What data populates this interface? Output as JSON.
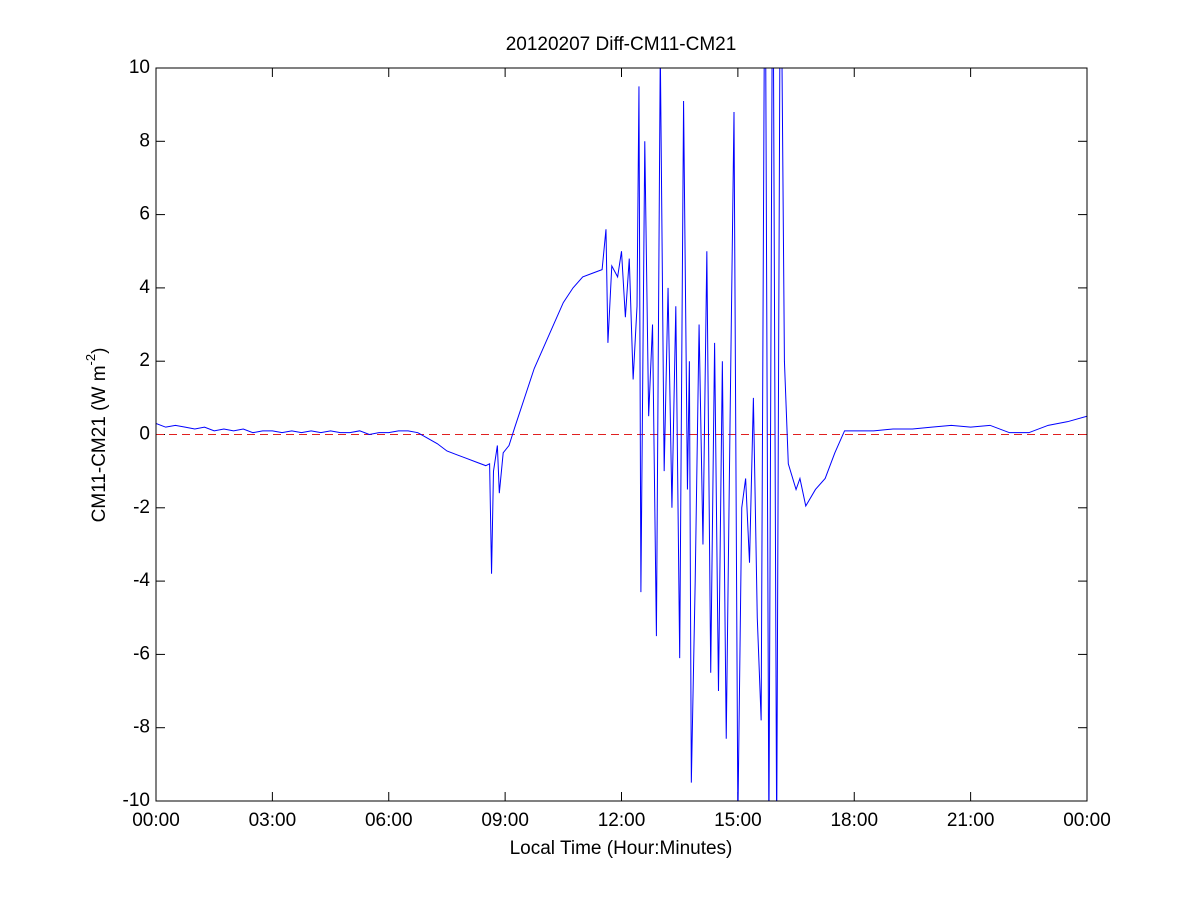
{
  "chart_data": {
    "type": "line",
    "title": "20120207 Diff-CM11-CM21",
    "x_label": "Local Time (Hour:Minutes)",
    "y_label": "CM11-CM21 (W m",
    "y_label_sup": "-2",
    "y_label_end": ")",
    "x": [
      0,
      0.25,
      0.5,
      0.75,
      1,
      1.25,
      1.5,
      1.75,
      2,
      2.25,
      2.5,
      2.75,
      3,
      3.25,
      3.5,
      3.75,
      4,
      4.25,
      4.5,
      4.75,
      5,
      5.25,
      5.5,
      5.75,
      6,
      6.25,
      6.5,
      6.75,
      7,
      7.25,
      7.5,
      7.75,
      8,
      8.25,
      8.5,
      8.6,
      8.65,
      8.7,
      8.8,
      8.85,
      8.95,
      9.1,
      9.25,
      9.5,
      9.75,
      10,
      10.25,
      10.5,
      10.75,
      11,
      11.25,
      11.5,
      11.6,
      11.65,
      11.75,
      11.9,
      12,
      12.1,
      12.2,
      12.3,
      12.4,
      12.45,
      12.5,
      12.6,
      12.7,
      12.8,
      12.9,
      13,
      13.1,
      13.2,
      13.3,
      13.4,
      13.5,
      13.6,
      13.7,
      13.75,
      13.8,
      13.9,
      14,
      14.1,
      14.2,
      14.3,
      14.4,
      14.5,
      14.6,
      14.7,
      14.8,
      14.9,
      15,
      15.1,
      15.2,
      15.3,
      15.4,
      15.5,
      15.6,
      15.7,
      15.8,
      15.9,
      16,
      16.1,
      16.2,
      16.3,
      16.5,
      16.6,
      16.75,
      17,
      17.25,
      17.5,
      17.75,
      18,
      18.5,
      19,
      19.5,
      20,
      20.5,
      21,
      21.5,
      22,
      22.5,
      23,
      23.5,
      24
    ],
    "series": [
      {
        "color": "#0000ff",
        "values": [
          0.3,
          0.2,
          0.25,
          0.2,
          0.15,
          0.2,
          0.1,
          0.15,
          0.1,
          0.15,
          0.05,
          0.1,
          0.1,
          0.05,
          0.1,
          0.05,
          0.1,
          0.05,
          0.1,
          0.05,
          0.05,
          0.1,
          0,
          0.05,
          0.05,
          0.1,
          0.1,
          0.05,
          -0.1,
          -0.25,
          -0.45,
          -0.55,
          -0.65,
          -0.75,
          -0.85,
          -0.8,
          -3.8,
          -1.0,
          -0.3,
          -1.6,
          -0.5,
          -0.3,
          0.2,
          1.0,
          1.8,
          2.4,
          3.0,
          3.6,
          4.0,
          4.3,
          4.4,
          4.5,
          5.6,
          2.5,
          4.6,
          4.3,
          5.0,
          3.2,
          4.8,
          1.5,
          3.5,
          9.5,
          -4.3,
          8.0,
          0.5,
          3.0,
          -5.5,
          10.5,
          -1.0,
          4.0,
          -2.0,
          3.5,
          -6.1,
          9.1,
          -1.5,
          2.0,
          -9.5,
          -4.0,
          3.0,
          -3.0,
          5.0,
          -6.5,
          2.5,
          -7.0,
          2.0,
          -8.3,
          0.5,
          8.8,
          -10.5,
          -2.0,
          -1.2,
          -3.5,
          1.0,
          -5.0,
          -7.8,
          15,
          -11,
          15,
          -11,
          15,
          2.0,
          -0.8,
          -1.5,
          -1.2,
          -1.95,
          -1.5,
          -1.2,
          -0.5,
          0.1,
          0.1,
          0.1,
          0.15,
          0.15,
          0.2,
          0.25,
          0.2,
          0.25,
          0.05,
          0.05,
          0.25,
          0.35,
          0.5
        ]
      }
    ],
    "reference_line": {
      "value": 0,
      "color": "#e02020"
    },
    "xlim": [
      0,
      24
    ],
    "xticks": [
      {
        "value": 0,
        "label": "00:00"
      },
      {
        "value": 3,
        "label": "03:00"
      },
      {
        "value": 6,
        "label": "06:00"
      },
      {
        "value": 9,
        "label": "09:00"
      },
      {
        "value": 12,
        "label": "12:00"
      },
      {
        "value": 15,
        "label": "15:00"
      },
      {
        "value": 18,
        "label": "18:00"
      },
      {
        "value": 21,
        "label": "21:00"
      },
      {
        "value": 24,
        "label": "00:00"
      }
    ],
    "ylim": [
      -10,
      10
    ],
    "yticks": [
      -10,
      -8,
      -6,
      -4,
      -2,
      0,
      2,
      4,
      6,
      8,
      10
    ],
    "grid": false
  }
}
